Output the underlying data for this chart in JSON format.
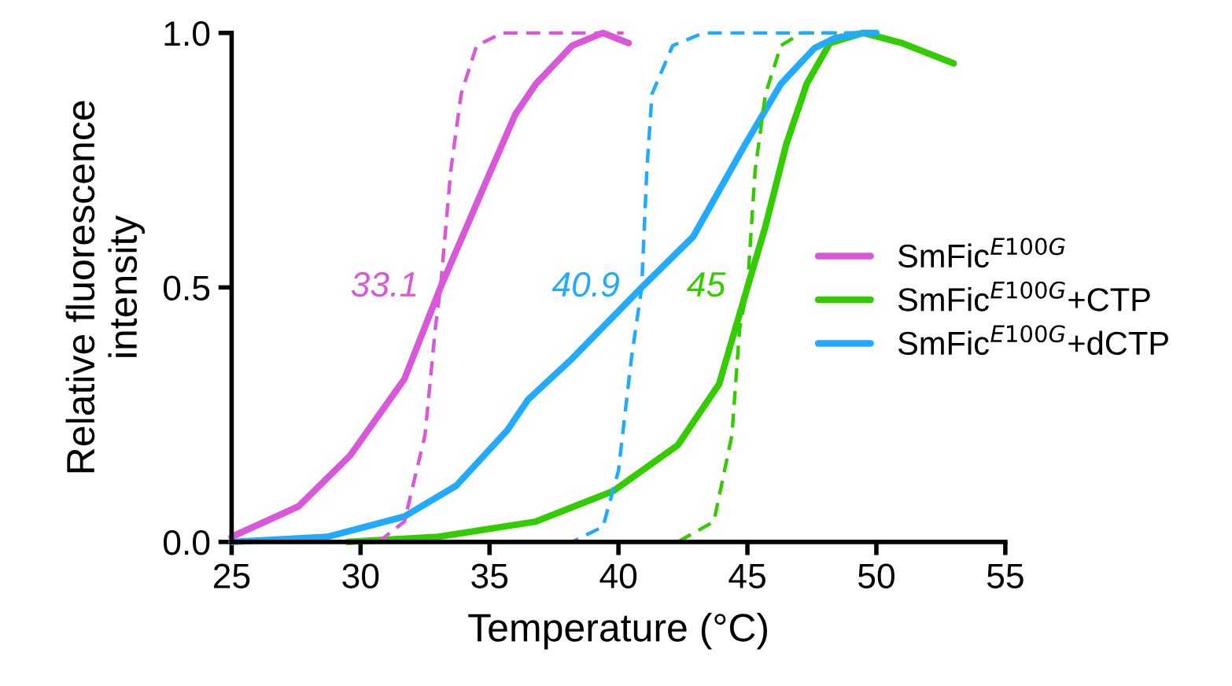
{
  "chart_data": {
    "type": "line",
    "xlabel": "Temperature (°C)",
    "ylabel": "Relative fluorescence\nintensity",
    "xlim": [
      25,
      55
    ],
    "xticks": [
      25,
      30,
      35,
      40,
      45,
      50,
      55
    ],
    "ylim": [
      0,
      1.0
    ],
    "yticks": [
      {
        "value": 0,
        "label": "0.0"
      },
      {
        "value": 0.5,
        "label": "0.5"
      },
      {
        "value": 1.0,
        "label": "1.0"
      }
    ],
    "grid": false,
    "legend": "right",
    "marker": "none",
    "series": [
      {
        "name": "SmFic$^{E100G}$",
        "color": "#d957d9",
        "line_style": "solid",
        "x": [
          25,
          27.6,
          29.6,
          31.7,
          33.1,
          34.8,
          36.0,
          36.8,
          38.2,
          39.4,
          40.4
        ],
        "values": [
          0.01,
          0.07,
          0.17,
          0.32,
          0.5,
          0.7,
          0.84,
          0.9,
          0.975,
          1.0,
          0.98
        ]
      },
      {
        "name": "SmFic$^{E100G}$+CTP",
        "color": "#33cc00",
        "line_style": "solid",
        "x": [
          29.5,
          33,
          36.8,
          39.8,
          42.3,
          43.9,
          45.0,
          45.7,
          46.5,
          47.3,
          48.2,
          49.5,
          51,
          53
        ],
        "values": [
          0,
          0.01,
          0.04,
          0.1,
          0.19,
          0.31,
          0.5,
          0.62,
          0.78,
          0.9,
          0.98,
          1.0,
          0.98,
          0.94
        ]
      },
      {
        "name": "SmFic$^{E100G}$+dCTP",
        "color": "#22aaff",
        "line_style": "solid",
        "x": [
          25,
          28.7,
          31.7,
          33.7,
          35.7,
          36.5,
          38.2,
          40.9,
          42.9,
          44.9,
          46.3,
          47.6,
          48.4,
          49.5,
          50
        ],
        "values": [
          0,
          0.01,
          0.05,
          0.11,
          0.22,
          0.28,
          0.36,
          0.5,
          0.6,
          0.78,
          0.9,
          0.97,
          0.99,
          1.0,
          1.0
        ]
      },
      {
        "color": "#d957d9",
        "line_style": "dashed",
        "x": [
          30.7,
          31.7,
          32.5,
          32.9,
          33.1,
          33.5,
          33.9,
          34.5,
          35.5,
          40.2
        ],
        "values": [
          0,
          0.04,
          0.21,
          0.42,
          0.5,
          0.73,
          0.88,
          0.975,
          1.0,
          1.0
        ]
      },
      {
        "color": "#33cc00",
        "line_style": "dashed",
        "x": [
          30,
          42.3,
          43.7,
          44.4,
          44.7,
          45.0,
          45.3,
          45.7,
          46.3,
          47.1,
          50
        ],
        "values": [
          0,
          0,
          0.04,
          0.21,
          0.42,
          0.5,
          0.73,
          0.88,
          0.975,
          1.0,
          1.0
        ]
      },
      {
        "color": "#22aaff",
        "line_style": "dashed",
        "x": [
          30,
          38.2,
          39.4,
          40.0,
          40.5,
          40.9,
          41.1,
          41.3,
          42.1,
          43.3,
          50
        ],
        "values": [
          0,
          0,
          0.03,
          0.14,
          0.36,
          0.5,
          0.73,
          0.88,
          0.975,
          1.0,
          1.0
        ]
      }
    ],
    "annotations": [
      {
        "text": "33.1",
        "x": 33.1,
        "y": 0.5
      },
      {
        "text": "45",
        "x": 45.0,
        "y": 0.5
      },
      {
        "text": "40.9",
        "x": 40.9,
        "y": 0.5
      }
    ]
  }
}
